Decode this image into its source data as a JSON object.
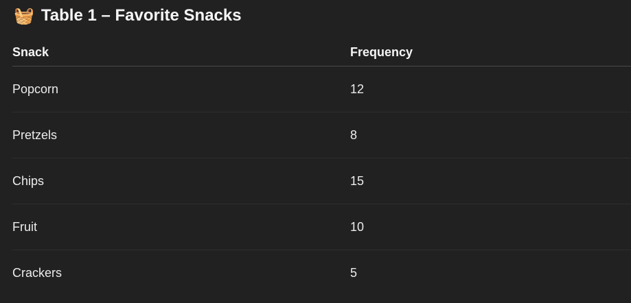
{
  "title": {
    "icon": "basket-icon",
    "emoji": "🧺",
    "text": "Table 1 – Favorite Snacks"
  },
  "table": {
    "headers": [
      "Snack",
      "Frequency"
    ],
    "rows": [
      [
        "Popcorn",
        "12"
      ],
      [
        "Pretzels",
        "8"
      ],
      [
        "Chips",
        "15"
      ],
      [
        "Fruit",
        "10"
      ],
      [
        "Crackers",
        "5"
      ]
    ]
  }
}
